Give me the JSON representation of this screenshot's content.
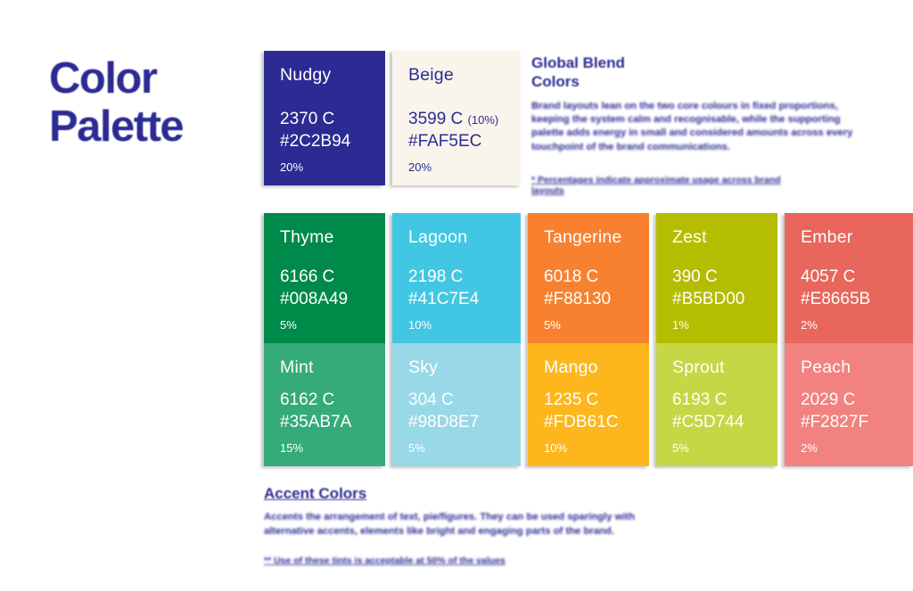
{
  "page": {
    "title_line1": "Color",
    "title_line2": "Palette",
    "accent_blue": "#2C2B94",
    "background": "#FFFFFF"
  },
  "global_blend": {
    "heading_line1": "Global Blend",
    "heading_line2": "Colors",
    "paragraph_illegible": "Brand layouts lean on the two core colours in fixed proportions, keeping the system calm and recognisable, while the supporting palette adds energy in small and considered amounts across every touchpoint of the brand communications.",
    "footnote_illegible": "* Percentages indicate approximate usage across brand layouts"
  },
  "accent": {
    "heading": "Accent Colors",
    "paragraph_illegible": "Accents the arrangement of text, pie/figures. They can be used sparingly with alternative accents, elements like bright and engaging parts of the brand.",
    "footnote_illegible": "** Use of these tints is acceptable at 50% of the values"
  },
  "swatches": {
    "primary": [
      {
        "name": "Nudgy",
        "pantone": "2370 C",
        "pantone_note": "",
        "hex": "#2C2B94",
        "usage": "20%",
        "bg": "#2C2B94",
        "fg": "#FFFFFF"
      },
      {
        "name": "Beige",
        "pantone": "3599 C",
        "pantone_note": "(10%)",
        "hex": "#FAF5EC",
        "usage": "20%",
        "bg": "#FAF5EC",
        "fg": "#2C2B94"
      }
    ],
    "secondary": [
      {
        "name": "Thyme",
        "pantone": "6166 C",
        "pantone_note": "",
        "hex": "#008A49",
        "usage": "5%",
        "bg": "#008A49",
        "fg": "#FFFFFF"
      },
      {
        "name": "Lagoon",
        "pantone": "2198 C",
        "pantone_note": "",
        "hex": "#41C7E4",
        "usage": "10%",
        "bg": "#41C7E4",
        "fg": "#FFFFFF"
      },
      {
        "name": "Tangerine",
        "pantone": "6018 C",
        "pantone_note": "",
        "hex": "#F88130",
        "usage": "5%",
        "bg": "#F88130",
        "fg": "#FFFFFF"
      },
      {
        "name": "Zest",
        "pantone": "390 C",
        "pantone_note": "",
        "hex": "#B5BD00",
        "usage": "1%",
        "bg": "#B5BD00",
        "fg": "#FFFFFF"
      },
      {
        "name": "Ember",
        "pantone": "4057 C",
        "pantone_note": "",
        "hex": "#E8665B",
        "usage": "2%",
        "bg": "#E8665B",
        "fg": "#FFFFFF"
      },
      {
        "name": "Mint",
        "pantone": "6162 C",
        "pantone_note": "",
        "hex": "#35AB7A",
        "usage": "15%",
        "bg": "#35AB7A",
        "fg": "#FFFFFF"
      },
      {
        "name": "Sky",
        "pantone": "304 C",
        "pantone_note": "",
        "hex": "#98D8E7",
        "usage": "5%",
        "bg": "#98D8E7",
        "fg": "#FFFFFF"
      },
      {
        "name": "Mango",
        "pantone": "1235 C",
        "pantone_note": "",
        "hex": "#FDB61C",
        "usage": "10%",
        "bg": "#FDB61C",
        "fg": "#FFFFFF"
      },
      {
        "name": "Sprout",
        "pantone": "6193 C",
        "pantone_note": "",
        "hex": "#C5D744",
        "usage": "5%",
        "bg": "#C5D744",
        "fg": "#FFFFFF"
      },
      {
        "name": "Peach",
        "pantone": "2029 C",
        "pantone_note": "",
        "hex": "#F2827F",
        "usage": "2%",
        "bg": "#F2827F",
        "fg": "#FFFFFF"
      }
    ]
  }
}
